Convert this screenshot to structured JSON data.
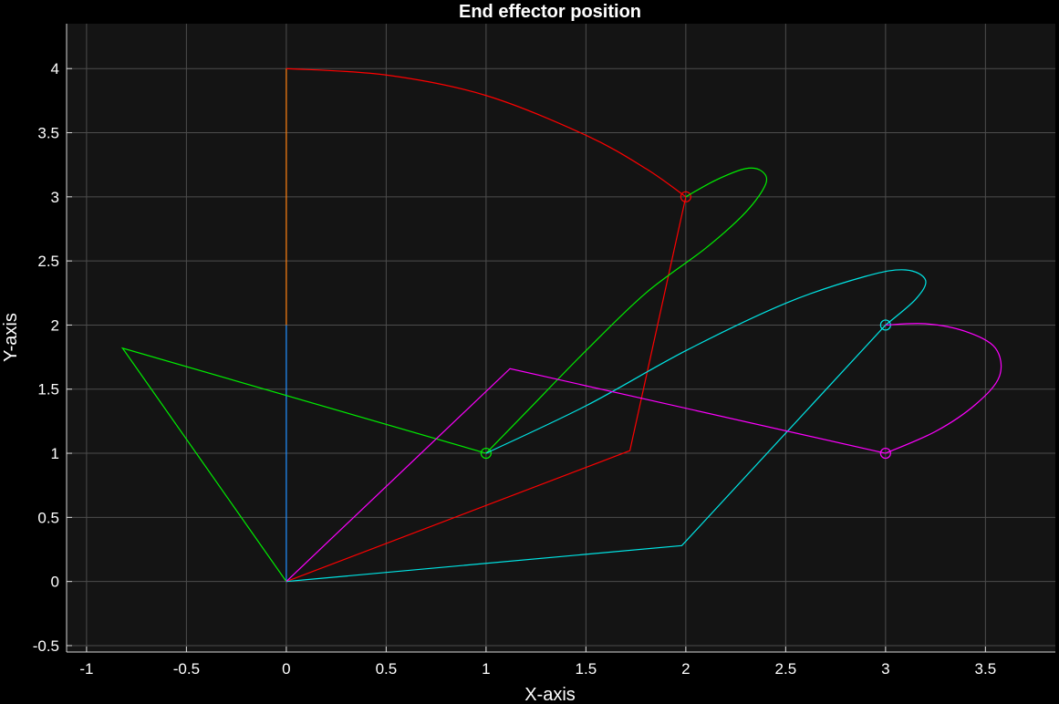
{
  "chart_data": {
    "type": "line",
    "title": "End effector position",
    "xlabel": "X-axis",
    "ylabel": "Y-axis",
    "xlim": [
      -1.1,
      3.85
    ],
    "ylim": [
      -0.55,
      4.35
    ],
    "xticks": [
      -1,
      -0.5,
      0,
      0.5,
      1,
      1.5,
      2,
      2.5,
      3,
      3.5
    ],
    "xtick_labels": [
      "-1",
      "-0.5",
      "0",
      "0.5",
      "1",
      "1.5",
      "2",
      "2.5",
      "3",
      "3.5"
    ],
    "yticks": [
      -0.5,
      0,
      0.5,
      1,
      1.5,
      2,
      2.5,
      3,
      3.5,
      4
    ],
    "ytick_labels": [
      "-0.5",
      "0",
      "0.5",
      "1",
      "1.5",
      "2",
      "2.5",
      "3",
      "3.5",
      "4"
    ],
    "grid": true,
    "background_color": "#141414",
    "figure_color": "#000000",
    "grid_color": "#4d4d4d",
    "axis_color": "#d9d9d9",
    "series": [
      {
        "color": "#ff7f0e",
        "style": "link",
        "x": [
          0,
          0
        ],
        "y": [
          2,
          4
        ]
      },
      {
        "color": "#1f8fff",
        "style": "link",
        "x": [
          0,
          0
        ],
        "y": [
          0,
          2
        ]
      },
      {
        "color": "#ff0000",
        "style": "path",
        "x": [
          0,
          0.5,
          1.0,
          1.5,
          1.8,
          2.0
        ],
        "y": [
          4.0,
          3.95,
          3.79,
          3.48,
          3.22,
          3.0
        ]
      },
      {
        "color": "#ff0000",
        "style": "link",
        "x": [
          0,
          1.72,
          2.0
        ],
        "y": [
          0,
          1.02,
          3.0
        ]
      },
      {
        "color": "#ff0000",
        "style": "marker",
        "x": [
          2.0
        ],
        "y": [
          3.0
        ]
      },
      {
        "color": "#00ee00",
        "style": "path",
        "x": [
          2.0,
          2.15,
          2.3,
          2.38,
          2.4,
          2.3,
          2.1,
          1.8,
          1.5,
          1.2,
          1.0
        ],
        "y": [
          3.0,
          3.13,
          3.22,
          3.2,
          3.1,
          2.88,
          2.6,
          2.25,
          1.8,
          1.32,
          1.0
        ]
      },
      {
        "color": "#00ee00",
        "style": "link",
        "x": [
          0,
          -0.82,
          1.0
        ],
        "y": [
          0,
          1.82,
          1.0
        ]
      },
      {
        "color": "#00ee00",
        "style": "marker",
        "x": [
          1.0
        ],
        "y": [
          1.0
        ]
      },
      {
        "color": "#00e5e5",
        "style": "path",
        "x": [
          1.0,
          1.5,
          2.0,
          2.5,
          2.9,
          3.1,
          3.2,
          3.15,
          3.0
        ],
        "y": [
          1.0,
          1.37,
          1.8,
          2.17,
          2.38,
          2.43,
          2.35,
          2.2,
          2.0
        ]
      },
      {
        "color": "#00e5e5",
        "style": "link",
        "x": [
          0,
          1.98,
          3.0
        ],
        "y": [
          0,
          0.28,
          2.0
        ]
      },
      {
        "color": "#00e5e5",
        "style": "marker",
        "x": [
          3.0
        ],
        "y": [
          2.0
        ]
      },
      {
        "color": "#ff00ff",
        "style": "path",
        "x": [
          3.0,
          3.2,
          3.4,
          3.55,
          3.57,
          3.45,
          3.25,
          3.0
        ],
        "y": [
          2.0,
          2.01,
          1.95,
          1.82,
          1.6,
          1.38,
          1.17,
          1.0
        ]
      },
      {
        "color": "#ff00ff",
        "style": "link",
        "x": [
          0,
          1.12,
          3.0
        ],
        "y": [
          0,
          1.66,
          1.0
        ]
      },
      {
        "color": "#ff00ff",
        "style": "marker",
        "x": [
          3.0
        ],
        "y": [
          1.0
        ]
      }
    ]
  }
}
